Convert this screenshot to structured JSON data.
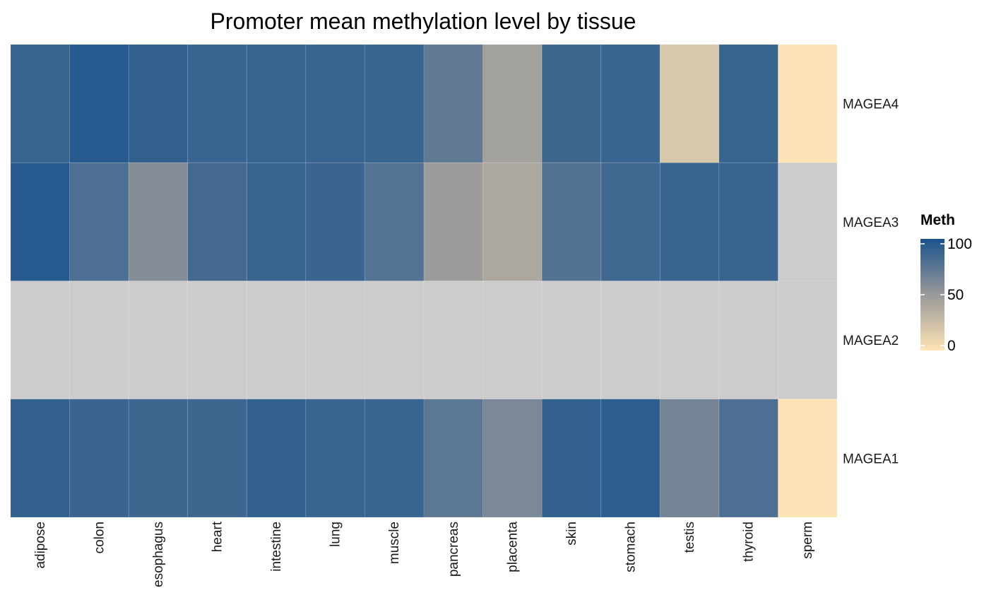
{
  "chart_data": {
    "type": "heatmap",
    "title": "Promoter mean methylation level by tissue",
    "x_categories": [
      "adipose",
      "colon",
      "esophagus",
      "heart",
      "intestine",
      "lung",
      "muscle",
      "pancreas",
      "placenta",
      "skin",
      "stomach",
      "testis",
      "thyroid",
      "sperm"
    ],
    "y_categories": [
      "MAGEA4",
      "MAGEA3",
      "MAGEA2",
      "MAGEA1"
    ],
    "values": [
      [
        88,
        95,
        90,
        88,
        88,
        88,
        88,
        72,
        45,
        86,
        88,
        18,
        88,
        0
      ],
      [
        95,
        80,
        58,
        84,
        88,
        87,
        77,
        48,
        40,
        78,
        85,
        88,
        88,
        null
      ],
      [
        null,
        null,
        null,
        null,
        null,
        null,
        null,
        null,
        null,
        null,
        null,
        null,
        null,
        null
      ],
      [
        90,
        87,
        86,
        86,
        90,
        88,
        88,
        74,
        62,
        90,
        92,
        64,
        80,
        0
      ]
    ],
    "legend": {
      "title": "Meth",
      "ticks": [
        100,
        50,
        0
      ],
      "range": [
        0,
        100
      ],
      "position": "right"
    },
    "colors": {
      "low": "#fde4b6",
      "mid": "#999999",
      "high": "#1a538d",
      "na": "#cccccc"
    },
    "grid": false
  }
}
